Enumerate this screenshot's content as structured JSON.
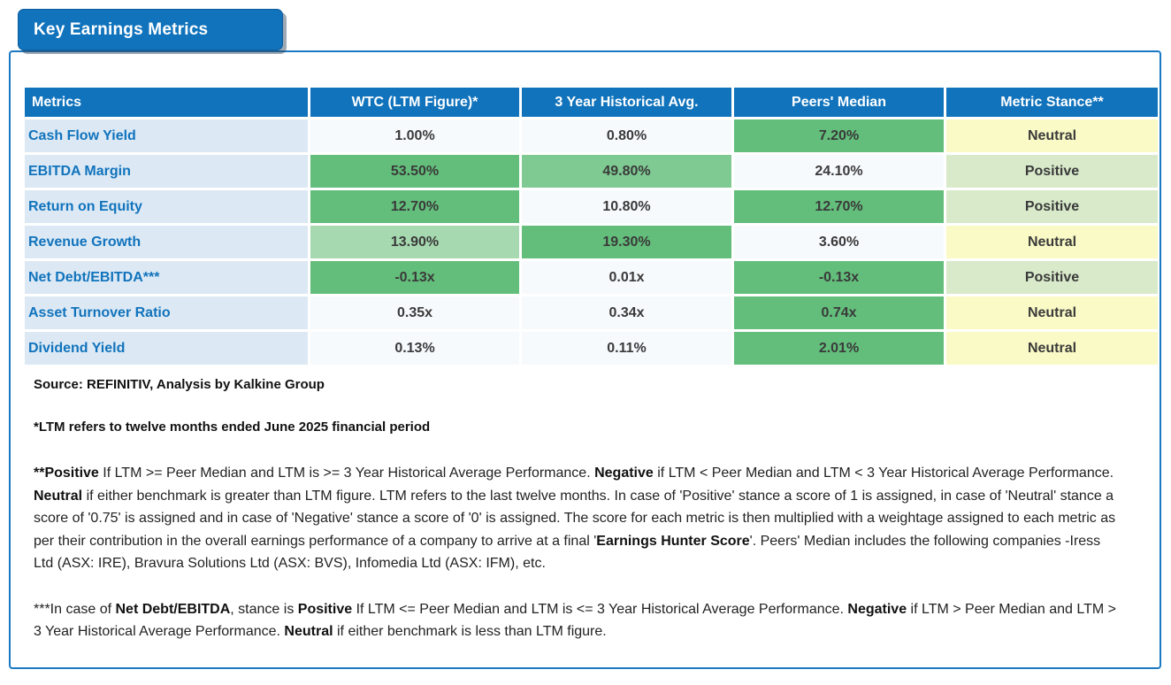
{
  "title": "Key Earnings Metrics",
  "colors": {
    "header_bg": "#1173BC",
    "panel_border": "#1b79c2",
    "label_bg": "#DCE9F5",
    "label_color": "#1173BC",
    "cell_bg": "#F7FAFD",
    "value_color": "#3A3A3A",
    "green": "#63BE7B",
    "green_med": "#7FCA92",
    "green_light": "#A6D9AF",
    "positive_bg": "#D8EACA",
    "neutral_bg": "#FAFAC6"
  },
  "table": {
    "columns": [
      "Metrics",
      "WTC (LTM Figure)*",
      "3 Year Historical Avg.",
      "Peers' Median",
      "Metric Stance**"
    ],
    "rows": [
      {
        "metric": "Cash Flow Yield",
        "wtc": {
          "v": "1.00%",
          "hl": "none"
        },
        "hist": {
          "v": "0.80%",
          "hl": "none"
        },
        "peers": {
          "v": "7.20%",
          "hl": "green"
        },
        "stance": {
          "v": "Neutral",
          "hl": "neutral"
        }
      },
      {
        "metric": "EBITDA Margin",
        "wtc": {
          "v": "53.50%",
          "hl": "green"
        },
        "hist": {
          "v": "49.80%",
          "hl": "green-med"
        },
        "peers": {
          "v": "24.10%",
          "hl": "none"
        },
        "stance": {
          "v": "Positive",
          "hl": "positive"
        }
      },
      {
        "metric": "Return on Equity",
        "wtc": {
          "v": "12.70%",
          "hl": "green"
        },
        "hist": {
          "v": "10.80%",
          "hl": "none"
        },
        "peers": {
          "v": "12.70%",
          "hl": "green"
        },
        "stance": {
          "v": "Positive",
          "hl": "positive"
        }
      },
      {
        "metric": "Revenue Growth",
        "wtc": {
          "v": "13.90%",
          "hl": "green-light"
        },
        "hist": {
          "v": "19.30%",
          "hl": "green"
        },
        "peers": {
          "v": "3.60%",
          "hl": "none"
        },
        "stance": {
          "v": "Neutral",
          "hl": "neutral"
        }
      },
      {
        "metric": "Net Debt/EBITDA***",
        "wtc": {
          "v": "-0.13x",
          "hl": "green"
        },
        "hist": {
          "v": "0.01x",
          "hl": "none"
        },
        "peers": {
          "v": "-0.13x",
          "hl": "green"
        },
        "stance": {
          "v": "Positive",
          "hl": "positive"
        }
      },
      {
        "metric": "Asset Turnover Ratio",
        "wtc": {
          "v": "0.35x",
          "hl": "none"
        },
        "hist": {
          "v": "0.34x",
          "hl": "none"
        },
        "peers": {
          "v": "0.74x",
          "hl": "green"
        },
        "stance": {
          "v": "Neutral",
          "hl": "neutral"
        }
      },
      {
        "metric": "Dividend Yield",
        "wtc": {
          "v": "0.13%",
          "hl": "none"
        },
        "hist": {
          "v": "0.11%",
          "hl": "none"
        },
        "peers": {
          "v": "2.01%",
          "hl": "green"
        },
        "stance": {
          "v": "Neutral",
          "hl": "neutral"
        }
      }
    ]
  },
  "notes": {
    "source": "Source: REFINITIV, Analysis by Kalkine Group",
    "ltm": "*LTM refers to twelve months ended June 2025 financial period",
    "stance_definition": [
      {
        "t": "**Positive",
        "b": true
      },
      {
        "t": " If LTM >= Peer Median and LTM is >= 3 Year Historical Average Performance. ",
        "b": false
      },
      {
        "t": "Negative",
        "b": true
      },
      {
        "t": " if LTM < Peer Median and LTM < 3 Year Historical Average Performance. ",
        "b": false
      },
      {
        "t": "Neutral",
        "b": true
      },
      {
        "t": " if either benchmark is greater than LTM figure. LTM refers to the last twelve months. In case of 'Positive' stance a score of 1 is assigned, in case of 'Neutral' stance a score of '0.75' is assigned and in case of 'Negative' stance a score of '0' is assigned. The score for each metric is then multiplied with a weightage assigned to each metric as per their contribution in the overall earnings performance of a company to arrive at a final '",
        "b": false
      },
      {
        "t": "Earnings Hunter Score",
        "b": true
      },
      {
        "t": "'. Peers' Median includes the following companies -Iress Ltd (ASX: IRE), Bravura Solutions Ltd (ASX: BVS), Infomedia Ltd (ASX: IFM), etc.",
        "b": false
      }
    ],
    "net_debt_definition": [
      {
        "t": "***In case of ",
        "b": false
      },
      {
        "t": "Net Debt/EBITDA",
        "b": true
      },
      {
        "t": ", stance is ",
        "b": false
      },
      {
        "t": "Positive",
        "b": true
      },
      {
        "t": " If LTM <= Peer Median and LTM is <= 3 Year Historical Average Performance. ",
        "b": false
      },
      {
        "t": "Negative",
        "b": true
      },
      {
        "t": " if LTM > Peer Median and LTM > 3 Year Historical Average Performance. ",
        "b": false
      },
      {
        "t": "Neutral",
        "b": true
      },
      {
        "t": " if either benchmark is less than LTM figure.",
        "b": false
      }
    ]
  }
}
